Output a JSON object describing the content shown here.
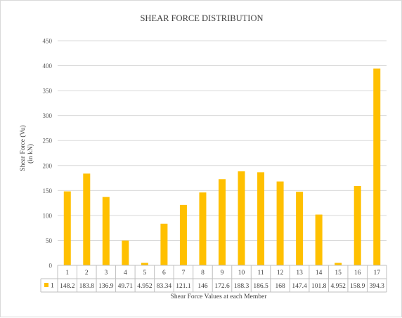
{
  "chart_data": {
    "type": "bar",
    "title": "SHEAR FORCE DISTRIBUTION",
    "ylabel_line1": "Shear Force (Vu)",
    "ylabel_line2": "(in kN)",
    "xlabel": "Shear Force Values at each Member",
    "ylim": [
      0,
      450
    ],
    "yticks": [
      0,
      50,
      100,
      150,
      200,
      250,
      300,
      350,
      400,
      450
    ],
    "grid": true,
    "legend_placement": "data-table",
    "bar_color": "#FFC000",
    "categories": [
      "1",
      "2",
      "3",
      "4",
      "5",
      "6",
      "7",
      "8",
      "9",
      "10",
      "11",
      "12",
      "13",
      "14",
      "15",
      "16",
      "17"
    ],
    "series": [
      {
        "name": "1",
        "values": [
          148.2,
          183.8,
          136.9,
          49.71,
          4.952,
          83.34,
          121.1,
          146,
          172.6,
          188.3,
          186.5,
          168,
          147.4,
          101.8,
          4.952,
          158.9,
          394.3
        ],
        "labels": [
          "148.2",
          "183.8",
          "136.9",
          "49.71",
          "4.952",
          "83.34",
          "121.1",
          "146",
          "172.6",
          "188.3",
          "186.5",
          "168",
          "147.4",
          "101.8",
          "4.952",
          "158.9",
          "394.3"
        ]
      }
    ]
  }
}
